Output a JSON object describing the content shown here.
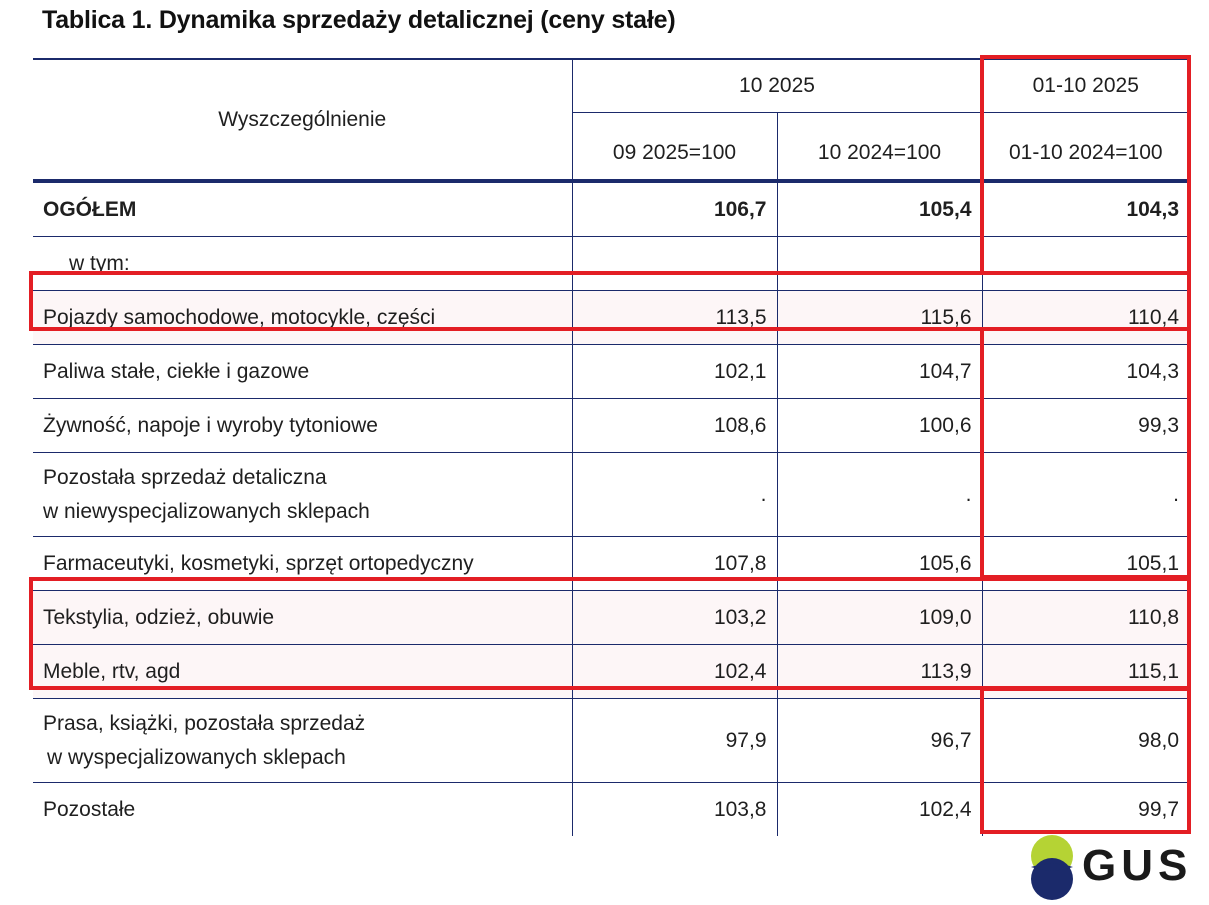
{
  "title": "Tablica 1. Dynamika sprzedaży detalicznej (ceny stałe)",
  "header": {
    "row_label": "Wyszczególnienie",
    "group1": "10 2025",
    "group2": "01-10 2025",
    "col1": "09 2025=100",
    "col2": "10 2024=100",
    "col3": "01-10 2024=100"
  },
  "rows": [
    {
      "label": [
        "OGÓŁEM"
      ],
      "v1": "106,7",
      "v2": "105,4",
      "v3": "104,3"
    },
    {
      "label": [
        "w tym:"
      ],
      "v1": "",
      "v2": "",
      "v3": ""
    },
    {
      "label": [
        "Pojazdy samochodowe, motocykle, części"
      ],
      "v1": "113,5",
      "v2": "115,6",
      "v3": "110,4"
    },
    {
      "label": [
        "Paliwa stałe, ciekłe i gazowe"
      ],
      "v1": "102,1",
      "v2": "104,7",
      "v3": "104,3"
    },
    {
      "label": [
        "Żywność, napoje i wyroby tytoniowe"
      ],
      "v1": "108,6",
      "v2": "100,6",
      "v3": "99,3"
    },
    {
      "label": [
        "Pozostała sprzedaż detaliczna",
        "w niewyspecjalizowanych sklepach"
      ],
      "v1": ".",
      "v2": ".",
      "v3": "."
    },
    {
      "label": [
        "Farmaceutyki, kosmetyki, sprzęt ortopedyczny"
      ],
      "v1": "107,8",
      "v2": "105,6",
      "v3": "105,1"
    },
    {
      "label": [
        "Tekstylia, odzież, obuwie"
      ],
      "v1": "103,2",
      "v2": "109,0",
      "v3": "110,8"
    },
    {
      "label": [
        "Meble, rtv, agd"
      ],
      "v1": "102,4",
      "v2": "113,9",
      "v3": "115,1"
    },
    {
      "label": [
        "Prasa, książki, pozostała sprzedaż",
        "w wyspecjalizowanych sklepach"
      ],
      "v1": "97,9",
      "v2": "96,7",
      "v3": "98,0"
    },
    {
      "label": [
        "Pozostałe"
      ],
      "v1": "103,8",
      "v2": "102,4",
      "v3": "99,7"
    }
  ],
  "logo": {
    "text": "GUS"
  },
  "colors": {
    "highlight": "#e31e24",
    "rule": "#1b2a6b",
    "logo_green": "#b5d334",
    "logo_navy": "#1b2a6b"
  }
}
